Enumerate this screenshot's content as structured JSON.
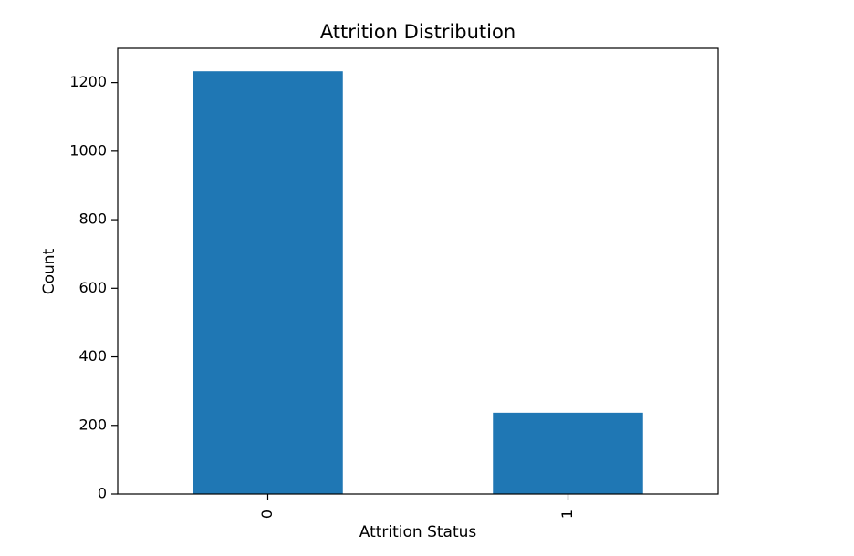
{
  "chart_data": {
    "type": "bar",
    "title": "Attrition Distribution",
    "xlabel": "Attrition Status",
    "ylabel": "Count",
    "categories": [
      "0",
      "1"
    ],
    "values": [
      1233,
      237
    ],
    "ylim": [
      0,
      1300
    ],
    "yticks": [
      0,
      200,
      400,
      600,
      800,
      1000,
      1200
    ],
    "grid": false,
    "x_tick_rotation": 90,
    "bar_color": "#1f77b4"
  }
}
